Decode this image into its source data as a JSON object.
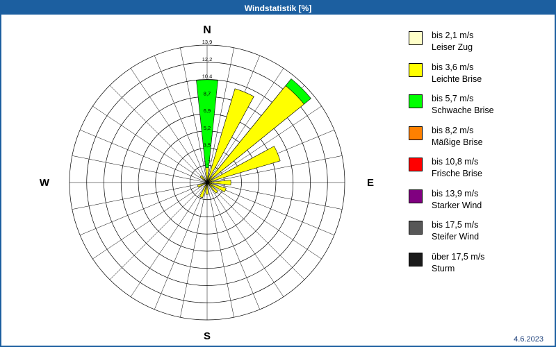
{
  "title_bar": {
    "title": "Windstatistik [%]",
    "bg_color": "#1c5fa0",
    "text_color": "#ffffff"
  },
  "footer": {
    "date": "4.6.2023"
  },
  "compass": {
    "n": "N",
    "e": "E",
    "s": "S",
    "w": "W"
  },
  "chart_data": {
    "type": "wind-rose",
    "title": "Windstatistik [%]",
    "unit": "percent",
    "grid": true,
    "spokes": 32,
    "rings": [
      1.7,
      3.5,
      5.2,
      6.9,
      8.7,
      10.4,
      12.2,
      13.9
    ],
    "ring_labels": [
      "1,7",
      "3,5",
      "5,2",
      "6,9",
      "8,7",
      "10,4",
      "12,2",
      "13,9"
    ],
    "max": 13.9,
    "petal_width_deg": 12,
    "petals": [
      {
        "dir": 0,
        "segments": [
          {
            "color": "#ffff00",
            "to": 1.5
          },
          {
            "color": "#00ff00",
            "to": 10.4
          }
        ]
      },
      {
        "dir": 22.5,
        "segments": [
          {
            "color": "#ffff00",
            "to": 9.9
          }
        ]
      },
      {
        "dir": 45,
        "segments": [
          {
            "color": "#ffff00",
            "to": 12.6
          },
          {
            "color": "#00ff00",
            "to": 13.5
          }
        ]
      },
      {
        "dir": 67.5,
        "segments": [
          {
            "color": "#ffff00",
            "to": 7.7
          }
        ]
      },
      {
        "dir": 90,
        "segments": [
          {
            "color": "#ffff00",
            "to": 2.4
          }
        ]
      },
      {
        "dir": 112.5,
        "segments": [
          {
            "color": "#ffff00",
            "to": 2.0
          }
        ]
      },
      {
        "dir": 135,
        "segments": [
          {
            "color": "#ffff00",
            "to": 1.4
          }
        ]
      },
      {
        "dir": 180,
        "segments": [
          {
            "color": "#ffff00",
            "to": 1.2
          }
        ]
      },
      {
        "dir": 202.5,
        "segments": [
          {
            "color": "#ffff00",
            "to": 1.6
          }
        ]
      },
      {
        "dir": 247.5,
        "segments": [
          {
            "color": "#ffff00",
            "to": 1.0
          }
        ]
      },
      {
        "dir": 315,
        "segments": [
          {
            "color": "#ffff00",
            "to": 0.9
          }
        ]
      }
    ],
    "legend_position": "right",
    "legend": [
      {
        "color": "#ffffc8",
        "speed": "bis 2,1 m/s",
        "name": "Leiser Zug"
      },
      {
        "color": "#ffff00",
        "speed": "bis 3,6 m/s",
        "name": "Leichte Brise"
      },
      {
        "color": "#00ff00",
        "speed": "bis 5,7 m/s",
        "name": "Schwache Brise"
      },
      {
        "color": "#ff8000",
        "speed": "bis 8,2 m/s",
        "name": "Mäßige Brise"
      },
      {
        "color": "#ff0000",
        "speed": "bis 10,8 m/s",
        "name": "Frische Brise"
      },
      {
        "color": "#800080",
        "speed": "bis 13,9 m/s",
        "name": "Starker Wind"
      },
      {
        "color": "#575757",
        "speed": "bis 17,5 m/s",
        "name": "Steifer Wind"
      },
      {
        "color": "#1a1a1a",
        "speed": "über 17,5 m/s",
        "name": "Sturm"
      }
    ]
  }
}
